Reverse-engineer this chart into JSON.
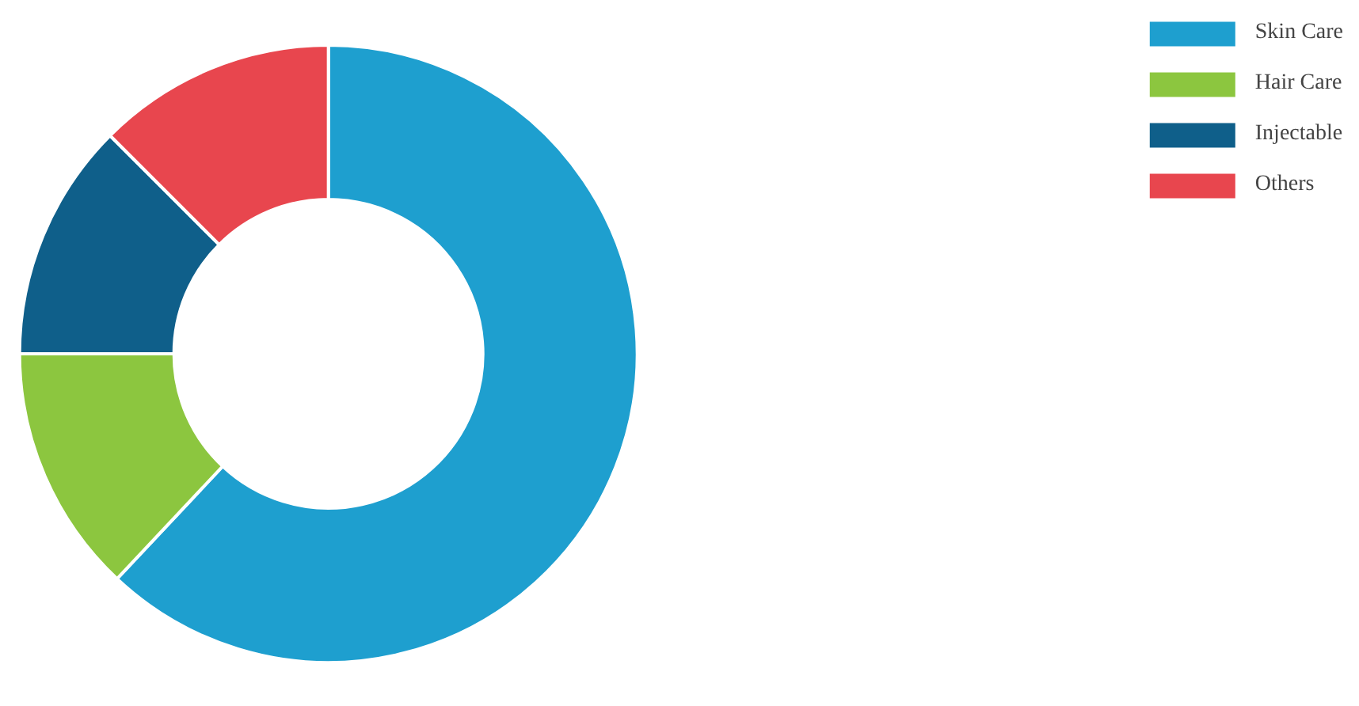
{
  "chart_data": {
    "type": "donut",
    "categories": [
      "Skin Care",
      "Hair Care",
      "Injectable",
      "Others"
    ],
    "values": [
      62,
      13,
      12.5,
      12.5
    ],
    "colors": [
      "#1e9fcf",
      "#8cc63f",
      "#0f5f8a",
      "#e8464e"
    ],
    "legend": "top right"
  }
}
